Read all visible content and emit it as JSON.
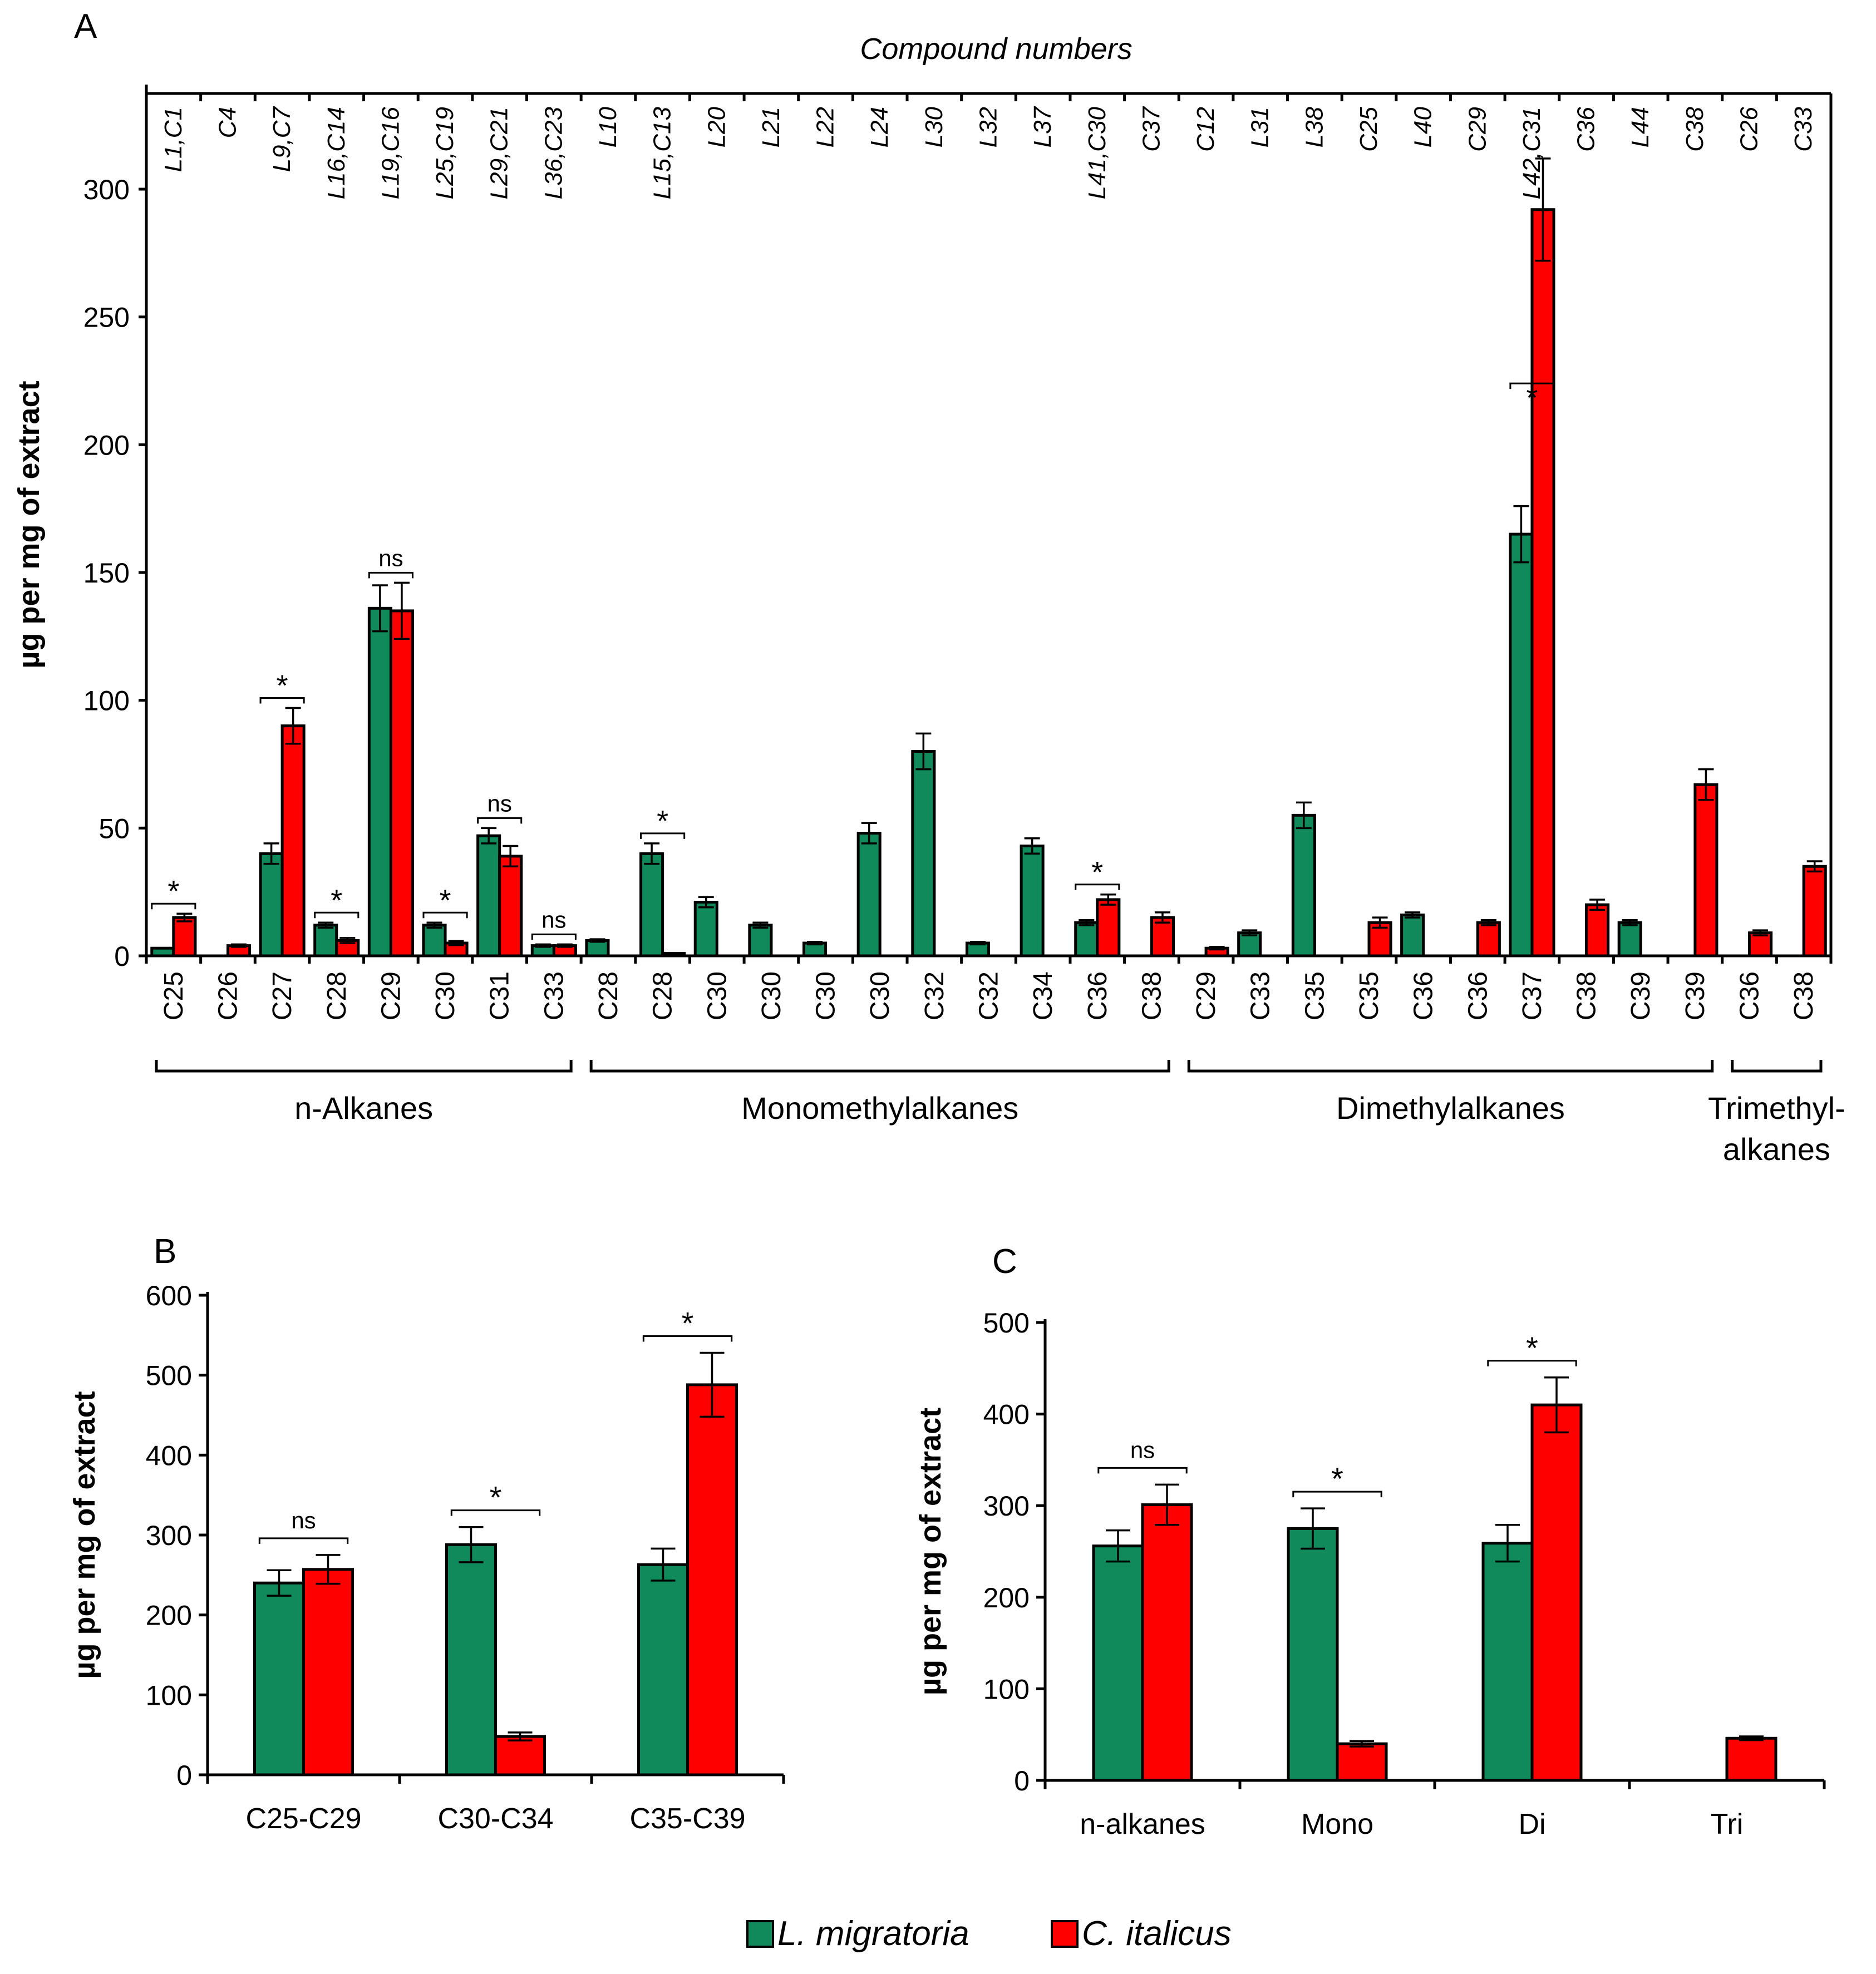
{
  "colors": {
    "l_migratoria": "#108a5a",
    "c_italicus": "#ff0000"
  },
  "legend": [
    {
      "name": "L. migratoria",
      "color": "#108a5a"
    },
    {
      "name": "C. italicus",
      "color": "#ff0000"
    }
  ],
  "chart_data": [
    {
      "panel": "A",
      "type": "bar",
      "top_label": "Compound numbers",
      "ylabel": "µg per mg of extract",
      "ylim": [
        0,
        330
      ],
      "yticks": [
        0,
        50,
        100,
        150,
        200,
        250,
        300
      ],
      "series_names": [
        "L. migratoria",
        "C. italicus"
      ],
      "groups": [
        {
          "cat": "C25",
          "top": "L1,C1",
          "green": 3,
          "red": 15,
          "eg": 0,
          "er": 1.5,
          "sig": "*"
        },
        {
          "cat": "C26",
          "top": "C4",
          "green": null,
          "red": 4,
          "eg": 0,
          "er": 0.5,
          "sig": ""
        },
        {
          "cat": "C27",
          "top": "L9,C7",
          "green": 40,
          "red": 90,
          "eg": 4,
          "er": 7,
          "sig": "*"
        },
        {
          "cat": "C28",
          "top": "L16,C14",
          "green": 12,
          "red": 6,
          "eg": 1,
          "er": 1,
          "sig": "*"
        },
        {
          "cat": "C29",
          "top": "L19,C16",
          "green": 136,
          "red": 135,
          "eg": 9,
          "er": 11,
          "sig": "ns"
        },
        {
          "cat": "C30",
          "top": "L25,C19",
          "green": 12,
          "red": 5,
          "eg": 1,
          "er": 0.8,
          "sig": "*"
        },
        {
          "cat": "C31",
          "top": "L29,C21",
          "green": 47,
          "red": 39,
          "eg": 3,
          "er": 4,
          "sig": "ns"
        },
        {
          "cat": "C33",
          "top": "L36,C23",
          "green": 4,
          "red": 4,
          "eg": 0.5,
          "er": 0.5,
          "sig": "ns"
        },
        {
          "cat": "C28",
          "top": "L10",
          "green": 6,
          "red": null,
          "eg": 0.5,
          "er": 0,
          "sig": ""
        },
        {
          "cat": "C28",
          "top": "L15,C13",
          "green": 40,
          "red": 1,
          "eg": 4,
          "er": 0,
          "sig": "*"
        },
        {
          "cat": "C30",
          "top": "L20",
          "green": 21,
          "red": null,
          "eg": 2,
          "er": 0,
          "sig": ""
        },
        {
          "cat": "C30",
          "top": "L21",
          "green": 12,
          "red": null,
          "eg": 1,
          "er": 0,
          "sig": ""
        },
        {
          "cat": "C30",
          "top": "L22",
          "green": 5,
          "red": null,
          "eg": 0.5,
          "er": 0,
          "sig": ""
        },
        {
          "cat": "C30",
          "top": "L24",
          "green": 48,
          "red": null,
          "eg": 4,
          "er": 0,
          "sig": ""
        },
        {
          "cat": "C32",
          "top": "L30",
          "green": 80,
          "red": null,
          "eg": 7,
          "er": 0,
          "sig": ""
        },
        {
          "cat": "C32",
          "top": "L32",
          "green": 5,
          "red": null,
          "eg": 0.5,
          "er": 0,
          "sig": ""
        },
        {
          "cat": "C34",
          "top": "L37",
          "green": 43,
          "red": null,
          "eg": 3,
          "er": 0,
          "sig": ""
        },
        {
          "cat": "C36",
          "top": "L41,C30",
          "green": 13,
          "red": 22,
          "eg": 1,
          "er": 2,
          "sig": "*"
        },
        {
          "cat": "C38",
          "top": "C37",
          "green": null,
          "red": 15,
          "eg": 0,
          "er": 2,
          "sig": ""
        },
        {
          "cat": "C29",
          "top": "C12",
          "green": null,
          "red": 3,
          "eg": 0,
          "er": 0.5,
          "sig": ""
        },
        {
          "cat": "C33",
          "top": "L31",
          "green": 9,
          "red": null,
          "eg": 1,
          "er": 0,
          "sig": ""
        },
        {
          "cat": "C35",
          "top": "L38",
          "green": 55,
          "red": null,
          "eg": 5,
          "er": 0,
          "sig": ""
        },
        {
          "cat": "C35",
          "top": "C25",
          "green": null,
          "red": 13,
          "eg": 0,
          "er": 2,
          "sig": ""
        },
        {
          "cat": "C36",
          "top": "L40",
          "green": 16,
          "red": null,
          "eg": 1,
          "er": 0,
          "sig": ""
        },
        {
          "cat": "C36",
          "top": "C29",
          "green": null,
          "red": 13,
          "eg": 0,
          "er": 1,
          "sig": ""
        },
        {
          "cat": "C37",
          "top": "L42,C31",
          "green": 165,
          "red": 292,
          "eg": 11,
          "er": 20,
          "sig": "*"
        },
        {
          "cat": "C38",
          "top": "C36",
          "green": null,
          "red": 20,
          "eg": 0,
          "er": 2,
          "sig": ""
        },
        {
          "cat": "C39",
          "top": "L44",
          "green": 13,
          "red": null,
          "eg": 1,
          "er": 0,
          "sig": ""
        },
        {
          "cat": "C39",
          "top": "C38",
          "green": null,
          "red": 67,
          "eg": 0,
          "er": 6,
          "sig": ""
        },
        {
          "cat": "C36",
          "top": "C26",
          "green": null,
          "red": 9,
          "eg": 0,
          "er": 1,
          "sig": ""
        },
        {
          "cat": "C38",
          "top": "C33",
          "green": null,
          "red": 35,
          "eg": 0,
          "er": 2,
          "sig": ""
        }
      ],
      "classes": [
        {
          "label": "n-Alkanes",
          "from": 0,
          "to": 7
        },
        {
          "label": "Monomethylalkanes",
          "from": 8,
          "to": 18
        },
        {
          "label": "Dimethylalkanes",
          "from": 19,
          "to": 28
        },
        {
          "label": "Trimethyl-",
          "label2": "alkanes",
          "from": 29,
          "to": 30
        }
      ]
    },
    {
      "panel": "B",
      "type": "bar",
      "ylabel": "µg per mg of extract",
      "ylim": [
        0,
        600
      ],
      "yticks": [
        0,
        100,
        200,
        300,
        400,
        500,
        600
      ],
      "categories": [
        "C25-C29",
        "C30-C34",
        "C35-C39"
      ],
      "series": [
        {
          "name": "L. migratoria",
          "values": [
            240,
            288,
            263
          ],
          "errors": [
            16,
            22,
            20
          ]
        },
        {
          "name": "C. italicus",
          "values": [
            257,
            48,
            488
          ],
          "errors": [
            18,
            5,
            40
          ]
        }
      ],
      "sig": [
        "ns",
        "*",
        "*"
      ]
    },
    {
      "panel": "C",
      "type": "bar",
      "ylabel": "µg per mg of extract",
      "ylim": [
        0,
        500
      ],
      "yticks": [
        0,
        100,
        200,
        300,
        400,
        500
      ],
      "categories": [
        "n-alkanes",
        "Mono",
        "Di",
        "Tri"
      ],
      "series": [
        {
          "name": "L. migratoria",
          "values": [
            256,
            275,
            259,
            null
          ],
          "errors": [
            17,
            22,
            20,
            0
          ]
        },
        {
          "name": "C. italicus",
          "values": [
            301,
            40,
            410,
            46
          ],
          "errors": [
            22,
            3,
            30,
            2
          ]
        }
      ],
      "sig": [
        "ns",
        "*",
        "*",
        ""
      ]
    }
  ]
}
